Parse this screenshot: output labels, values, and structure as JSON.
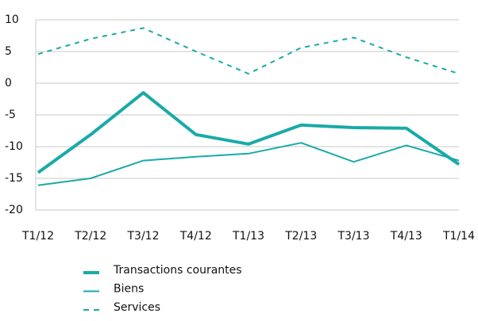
{
  "chart_data": {
    "type": "line",
    "categories": [
      "T1/12",
      "T2/12",
      "T3/12",
      "T4/12",
      "T1/13",
      "T2/13",
      "T3/13",
      "T4/13",
      "T1/14"
    ],
    "series": [
      {
        "name": "Transactions courantes",
        "color": "#19aaa8",
        "line_width": 4,
        "line_style": "solid",
        "values": [
          -14.1,
          -8.1,
          -1.5,
          -8.1,
          -9.6,
          -6.6,
          -7.0,
          -7.1,
          -12.8
        ]
      },
      {
        "name": "Biens",
        "color": "#19aaa8",
        "line_width": 2,
        "line_style": "solid",
        "values": [
          -16.1,
          -15.0,
          -12.2,
          -11.6,
          -11.1,
          -9.4,
          -12.4,
          -9.8,
          -12.2
        ]
      },
      {
        "name": "Services",
        "color": "#19aaa8",
        "line_width": 2,
        "line_style": "dashed",
        "values": [
          4.6,
          7.0,
          8.7,
          5.0,
          1.5,
          5.6,
          7.2,
          4.1,
          1.5
        ]
      }
    ],
    "ylim": [
      -20,
      10
    ],
    "yticks": [
      -20,
      -15,
      -10,
      -5,
      0,
      5,
      10
    ],
    "grid": true
  }
}
